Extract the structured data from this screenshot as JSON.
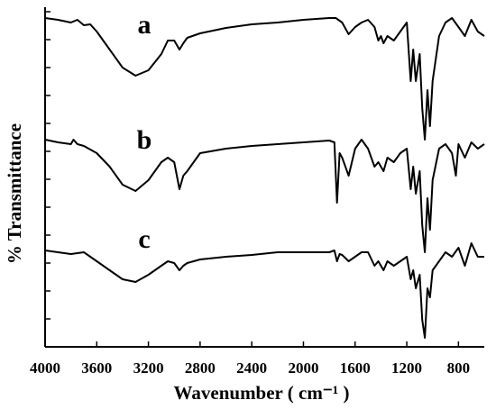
{
  "chart_data": {
    "type": "line",
    "x_label": "Wavenumber ( cm⁻¹ )",
    "y_label": "% Transmittance",
    "xlim": [
      4000,
      600
    ],
    "xticks": [
      4000,
      3600,
      3200,
      2800,
      2400,
      2000,
      1600,
      1200,
      800
    ],
    "ylim": [
      0,
      372
    ],
    "yticks": [
      0,
      31,
      62,
      93,
      124,
      155,
      186,
      217,
      248,
      279,
      310,
      341,
      372
    ],
    "color": "#000000",
    "series": [
      {
        "name": "a",
        "x": [
          4000,
          3900,
          3800,
          3750,
          3700,
          3650,
          3600,
          3500,
          3400,
          3300,
          3200,
          3100,
          3050,
          3000,
          2960,
          2930,
          2900,
          2800,
          2600,
          2400,
          2200,
          2000,
          1800,
          1750,
          1700,
          1650,
          1600,
          1550,
          1500,
          1450,
          1420,
          1400,
          1380,
          1350,
          1300,
          1250,
          1200,
          1170,
          1150,
          1130,
          1100,
          1080,
          1060,
          1040,
          1020,
          1000,
          950,
          900,
          850,
          800,
          750,
          700,
          650,
          600
        ],
        "values": [
          365,
          363,
          360,
          363,
          357,
          358,
          350,
          330,
          310,
          301,
          307,
          325,
          340,
          340,
          330,
          337,
          343,
          348,
          354,
          358,
          360,
          363,
          365,
          365,
          360,
          347,
          355,
          360,
          363,
          355,
          340,
          345,
          337,
          345,
          340,
          350,
          360,
          295,
          330,
          295,
          325,
          265,
          230,
          285,
          245,
          295,
          345,
          360,
          365,
          355,
          345,
          363,
          350,
          345
        ]
      },
      {
        "name": "b",
        "x": [
          4000,
          3900,
          3800,
          3780,
          3750,
          3700,
          3600,
          3500,
          3400,
          3300,
          3200,
          3100,
          3050,
          3000,
          2960,
          2930,
          2900,
          2800,
          2600,
          2400,
          2200,
          2000,
          1800,
          1760,
          1740,
          1720,
          1700,
          1650,
          1600,
          1550,
          1500,
          1450,
          1420,
          1380,
          1350,
          1300,
          1250,
          1200,
          1170,
          1150,
          1130,
          1100,
          1080,
          1060,
          1040,
          1020,
          1000,
          950,
          900,
          850,
          820,
          800,
          750,
          700,
          650,
          600
        ],
        "values": [
          230,
          227,
          225,
          230,
          225,
          223,
          215,
          200,
          180,
          173,
          185,
          205,
          210,
          205,
          175,
          190,
          195,
          215,
          220,
          223,
          225,
          227,
          229,
          227,
          160,
          215,
          210,
          190,
          220,
          230,
          220,
          200,
          205,
          195,
          210,
          205,
          215,
          220,
          175,
          200,
          170,
          195,
          135,
          105,
          165,
          130,
          185,
          220,
          225,
          215,
          190,
          225,
          210,
          227,
          220,
          225
        ]
      },
      {
        "name": "c",
        "x": [
          4000,
          3900,
          3800,
          3700,
          3600,
          3500,
          3400,
          3300,
          3200,
          3100,
          3050,
          3000,
          2960,
          2930,
          2900,
          2800,
          2600,
          2400,
          2200,
          2000,
          1800,
          1760,
          1740,
          1720,
          1700,
          1650,
          1600,
          1550,
          1500,
          1450,
          1420,
          1380,
          1350,
          1300,
          1250,
          1200,
          1170,
          1150,
          1130,
          1100,
          1080,
          1060,
          1040,
          1020,
          1000,
          950,
          900,
          850,
          800,
          750,
          700,
          650,
          600
        ],
        "values": [
          107,
          105,
          103,
          105,
          95,
          85,
          75,
          72,
          80,
          90,
          95,
          93,
          85,
          90,
          93,
          97,
          100,
          102,
          105,
          105,
          105,
          107,
          95,
          103,
          102,
          95,
          100,
          105,
          105,
          90,
          95,
          85,
          95,
          90,
          95,
          100,
          75,
          85,
          65,
          80,
          30,
          10,
          65,
          55,
          85,
          95,
          105,
          100,
          110,
          90,
          115,
          100,
          100
        ]
      }
    ]
  }
}
